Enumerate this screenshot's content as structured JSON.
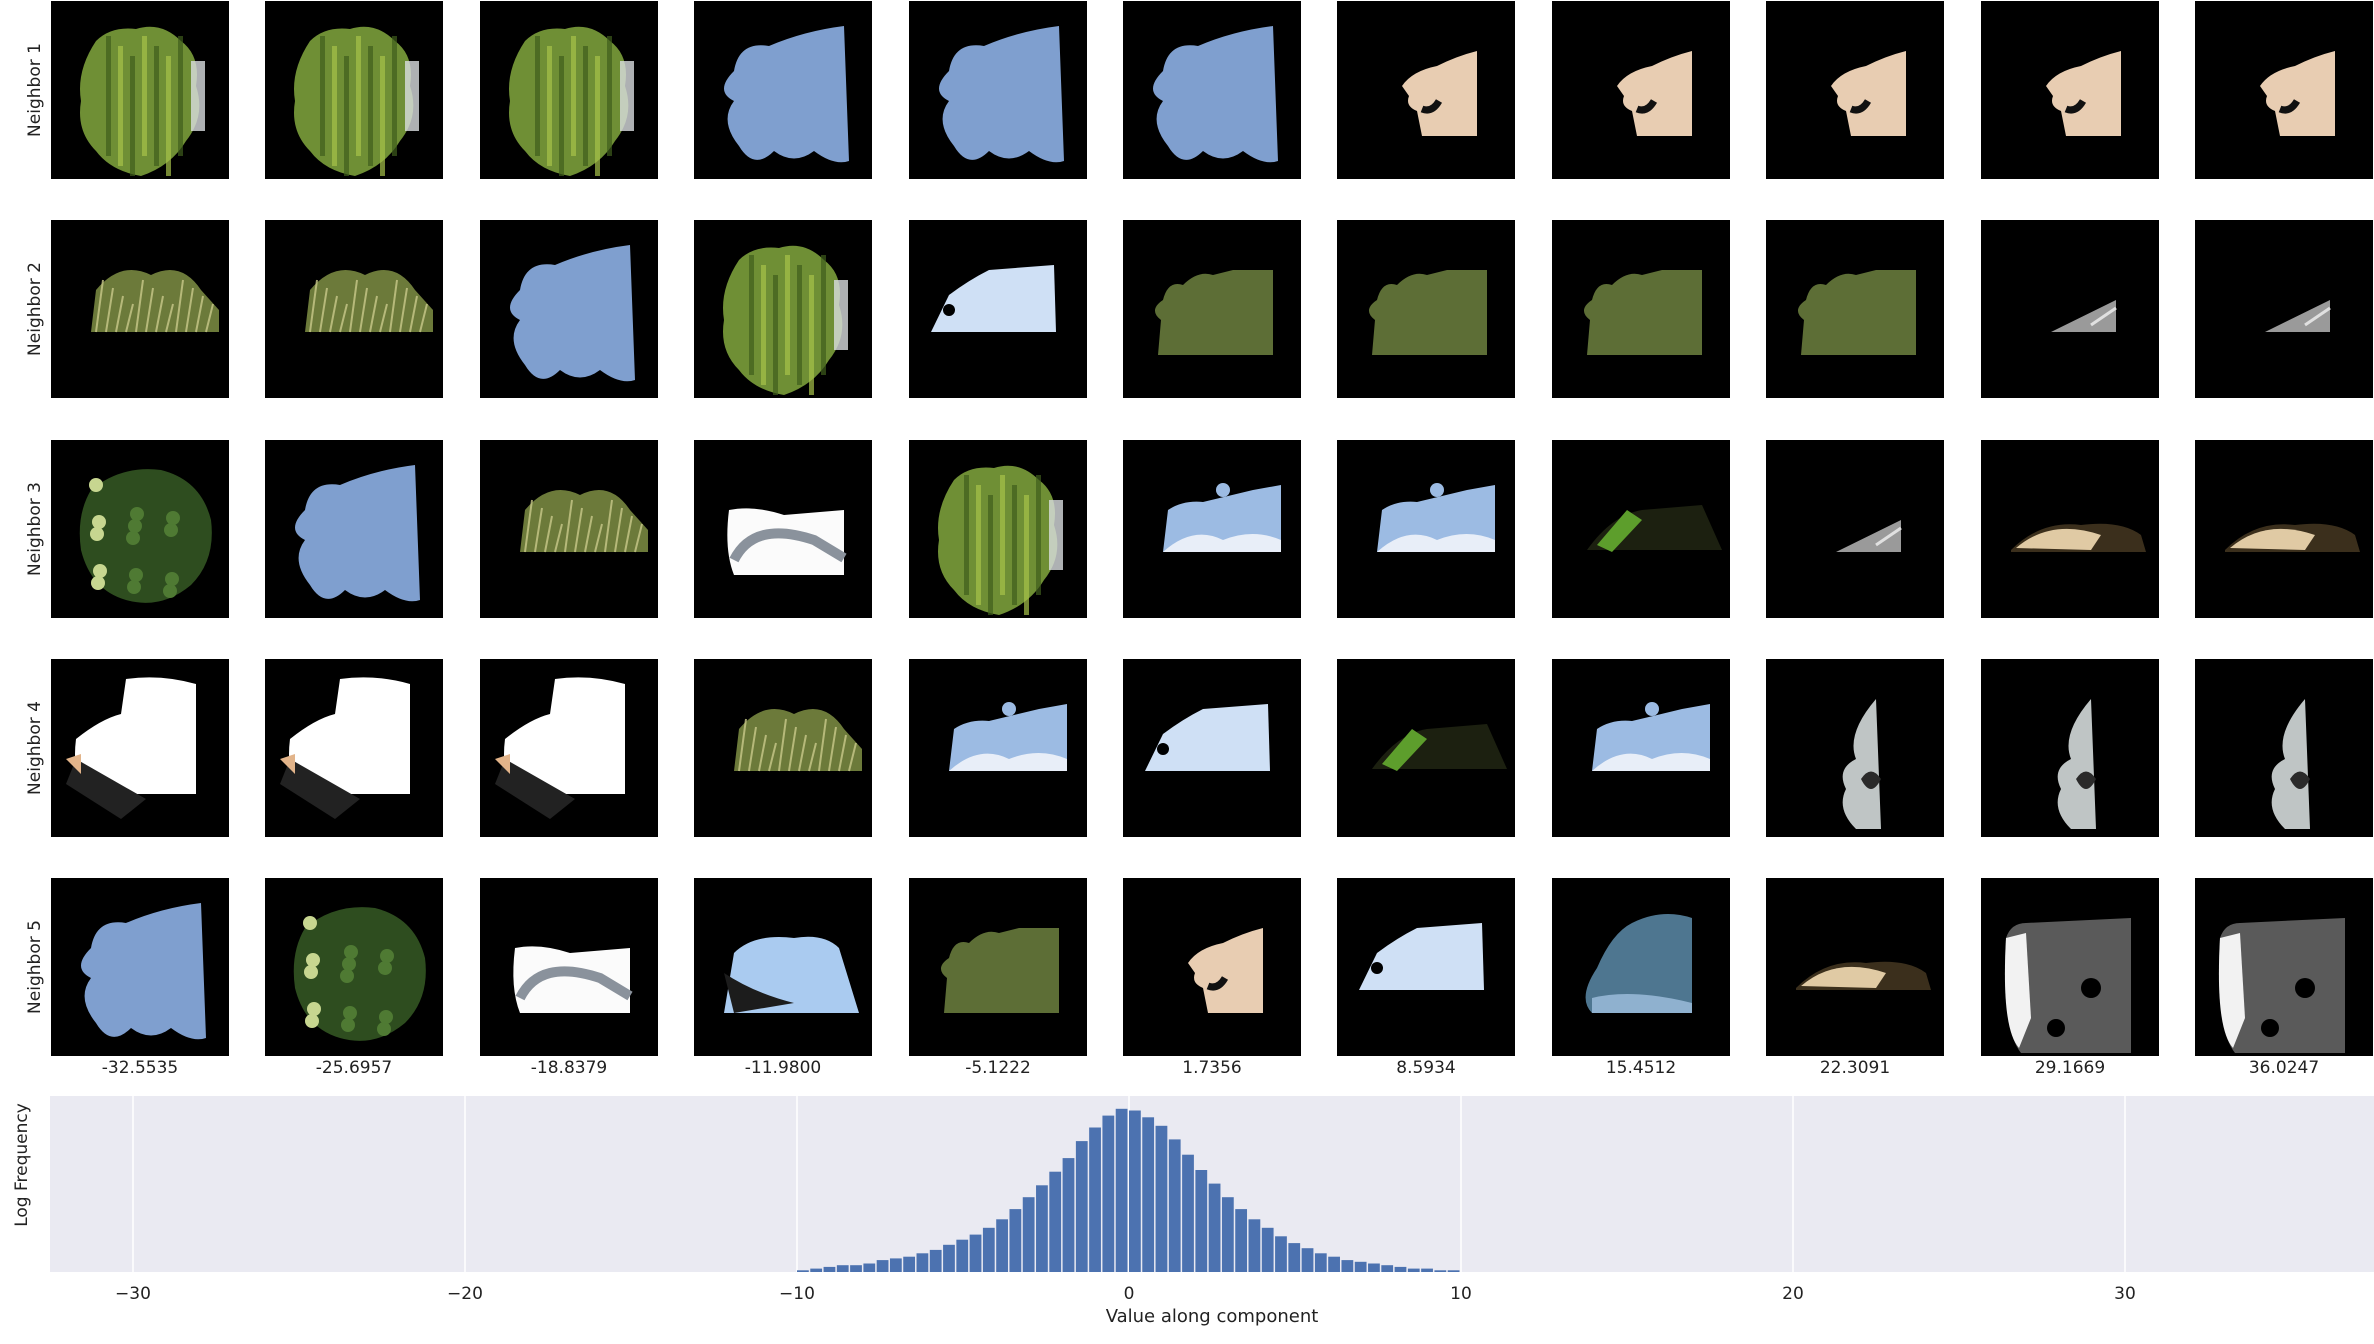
{
  "row_labels": [
    "Neighbor 1",
    "Neighbor 2",
    "Neighbor 3",
    "Neighbor 4",
    "Neighbor 5"
  ],
  "column_values": [
    "-32.5535",
    "-25.6957",
    "-18.8379",
    "-11.9800",
    "-5.1222",
    "1.7356",
    "8.5934",
    "15.4512",
    "22.3091",
    "29.1669",
    "36.0247"
  ],
  "thumbnails": [
    [
      "grass-blob",
      "grass-blob",
      "grass-blob",
      "sky-blob",
      "sky-blob",
      "sky-blob",
      "skin-wedge",
      "skin-wedge",
      "skin-wedge",
      "skin-wedge",
      "skin-wedge"
    ],
    [
      "hay-patch",
      "hay-patch",
      "sky-blob",
      "grass-blob",
      "pale-sky-patch",
      "olive-patch",
      "olive-patch",
      "olive-patch",
      "olive-patch",
      "grey-sliver",
      "grey-sliver"
    ],
    [
      "leaf-blob",
      "sky-blob",
      "hay-patch",
      "white-car-patch",
      "grass-blob",
      "cloud-patch",
      "cloud-patch",
      "green-stripe",
      "grey-sliver",
      "tan-leaf",
      "tan-leaf"
    ],
    [
      "white-pencil",
      "white-pencil",
      "white-pencil",
      "hay-patch",
      "cloud-patch",
      "pale-sky-patch",
      "green-stripe",
      "cloud-patch",
      "glass-shape",
      "glass-shape",
      "glass-shape"
    ],
    [
      "sky-blob",
      "leaf-blob",
      "white-car-patch",
      "blue-car-patch",
      "olive-patch",
      "skin-wedge",
      "pale-sky-patch",
      "teal-sky-patch",
      "tan-leaf",
      "grey-mask",
      "grey-mask"
    ]
  ],
  "chart_data": {
    "type": "bar",
    "xlabel": "Value along component",
    "ylabel": "Log Frequency",
    "xlim": [
      -32.5,
      37.5
    ],
    "xticks": [
      -30,
      -20,
      -10,
      0,
      10,
      20,
      30
    ],
    "xtick_labels": [
      "−30",
      "−20",
      "−10",
      "0",
      "10",
      "20",
      "30"
    ],
    "grid": true,
    "bin_width": 0.4,
    "bins": [
      {
        "x": -9.8,
        "y": 0.01
      },
      {
        "x": -9.4,
        "y": 0.02
      },
      {
        "x": -9.0,
        "y": 0.03
      },
      {
        "x": -8.6,
        "y": 0.04
      },
      {
        "x": -8.2,
        "y": 0.04
      },
      {
        "x": -7.8,
        "y": 0.05
      },
      {
        "x": -7.4,
        "y": 0.07
      },
      {
        "x": -7.0,
        "y": 0.08
      },
      {
        "x": -6.6,
        "y": 0.09
      },
      {
        "x": -6.2,
        "y": 0.11
      },
      {
        "x": -5.8,
        "y": 0.13
      },
      {
        "x": -5.4,
        "y": 0.16
      },
      {
        "x": -5.0,
        "y": 0.19
      },
      {
        "x": -4.6,
        "y": 0.22
      },
      {
        "x": -4.2,
        "y": 0.26
      },
      {
        "x": -3.8,
        "y": 0.31
      },
      {
        "x": -3.4,
        "y": 0.37
      },
      {
        "x": -3.0,
        "y": 0.44
      },
      {
        "x": -2.6,
        "y": 0.51
      },
      {
        "x": -2.2,
        "y": 0.59
      },
      {
        "x": -1.8,
        "y": 0.67
      },
      {
        "x": -1.4,
        "y": 0.77
      },
      {
        "x": -1.0,
        "y": 0.85
      },
      {
        "x": -0.6,
        "y": 0.92
      },
      {
        "x": -0.2,
        "y": 0.96
      },
      {
        "x": 0.2,
        "y": 0.95
      },
      {
        "x": 0.6,
        "y": 0.91
      },
      {
        "x": 1.0,
        "y": 0.86
      },
      {
        "x": 1.4,
        "y": 0.78
      },
      {
        "x": 1.8,
        "y": 0.69
      },
      {
        "x": 2.2,
        "y": 0.6
      },
      {
        "x": 2.6,
        "y": 0.52
      },
      {
        "x": 3.0,
        "y": 0.44
      },
      {
        "x": 3.4,
        "y": 0.37
      },
      {
        "x": 3.8,
        "y": 0.31
      },
      {
        "x": 4.2,
        "y": 0.26
      },
      {
        "x": 4.6,
        "y": 0.21
      },
      {
        "x": 5.0,
        "y": 0.17
      },
      {
        "x": 5.4,
        "y": 0.14
      },
      {
        "x": 5.8,
        "y": 0.11
      },
      {
        "x": 6.2,
        "y": 0.09
      },
      {
        "x": 6.6,
        "y": 0.07
      },
      {
        "x": 7.0,
        "y": 0.06
      },
      {
        "x": 7.4,
        "y": 0.05
      },
      {
        "x": 7.8,
        "y": 0.04
      },
      {
        "x": 8.2,
        "y": 0.03
      },
      {
        "x": 8.6,
        "y": 0.02
      },
      {
        "x": 9.0,
        "y": 0.02
      },
      {
        "x": 9.4,
        "y": 0.01
      },
      {
        "x": 9.8,
        "y": 0.01
      }
    ],
    "colors": {
      "bar": "#4c72b0",
      "background": "#eaeaf2",
      "grid": "#ffffff"
    }
  }
}
